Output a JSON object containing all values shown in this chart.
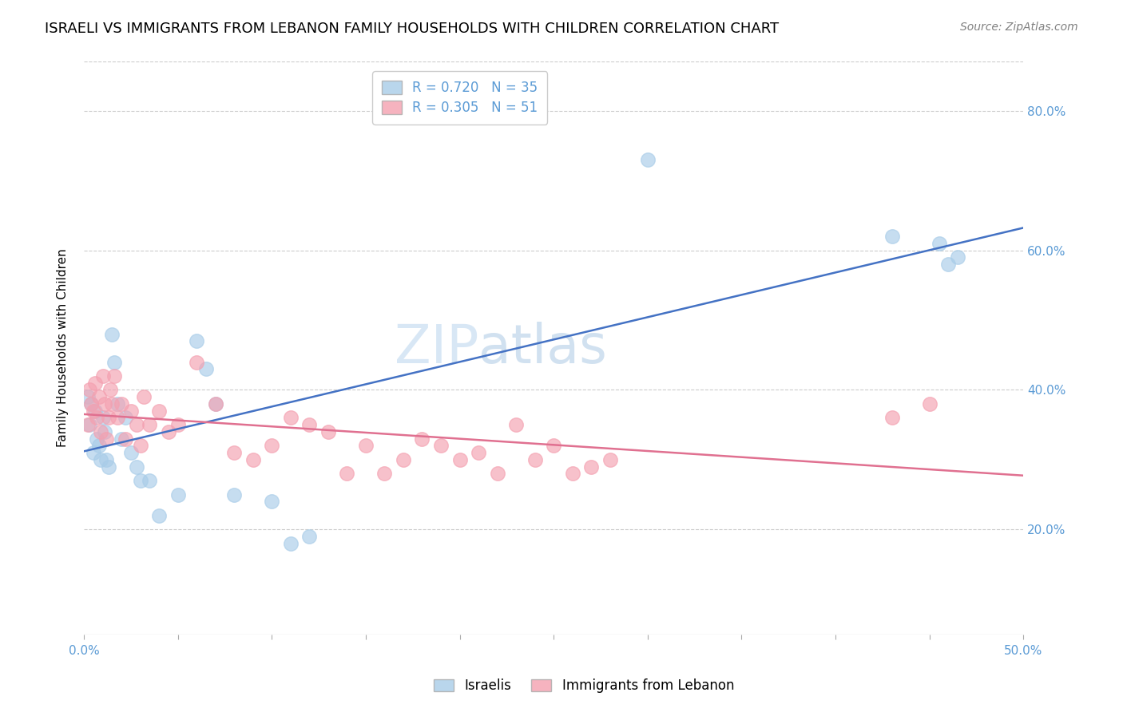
{
  "title": "ISRAELI VS IMMIGRANTS FROM LEBANON FAMILY HOUSEHOLDS WITH CHILDREN CORRELATION CHART",
  "source": "Source: ZipAtlas.com",
  "ylabel": "Family Households with Children",
  "xlim": [
    0.0,
    0.5
  ],
  "ylim": [
    0.05,
    0.87
  ],
  "yticks": [
    0.2,
    0.4,
    0.6,
    0.8
  ],
  "ytick_labels": [
    "20.0%",
    "40.0%",
    "60.0%",
    "80.0%"
  ],
  "xticks": [
    0.0,
    0.05,
    0.1,
    0.15,
    0.2,
    0.25,
    0.3,
    0.35,
    0.4,
    0.45,
    0.5
  ],
  "xtick_labels_show": [
    "0.0%",
    "",
    "",
    "",
    "",
    "",
    "",
    "",
    "",
    "",
    "50.0%"
  ],
  "grid_color": "#cccccc",
  "background_color": "#ffffff",
  "axis_color": "#5b9bd5",
  "israelis_R": 0.72,
  "israelis_N": 35,
  "lebanon_R": 0.305,
  "lebanon_N": 51,
  "israelis_color": "#a8cce8",
  "lebanon_color": "#f4a0b0",
  "israelis_line_color": "#4472c4",
  "lebanon_line_color": "#e07090",
  "israelis_x": [
    0.002,
    0.003,
    0.004,
    0.005,
    0.006,
    0.007,
    0.008,
    0.009,
    0.01,
    0.011,
    0.012,
    0.013,
    0.015,
    0.016,
    0.018,
    0.02,
    0.022,
    0.025,
    0.028,
    0.03,
    0.035,
    0.04,
    0.05,
    0.06,
    0.065,
    0.07,
    0.08,
    0.1,
    0.11,
    0.12,
    0.3,
    0.43,
    0.455,
    0.46,
    0.465
  ],
  "israelis_y": [
    0.39,
    0.35,
    0.38,
    0.31,
    0.37,
    0.33,
    0.32,
    0.3,
    0.36,
    0.34,
    0.3,
    0.29,
    0.48,
    0.44,
    0.38,
    0.33,
    0.36,
    0.31,
    0.29,
    0.27,
    0.27,
    0.22,
    0.25,
    0.47,
    0.43,
    0.38,
    0.25,
    0.24,
    0.18,
    0.19,
    0.73,
    0.62,
    0.61,
    0.58,
    0.59
  ],
  "lebanon_x": [
    0.002,
    0.003,
    0.004,
    0.005,
    0.006,
    0.007,
    0.008,
    0.009,
    0.01,
    0.011,
    0.012,
    0.013,
    0.014,
    0.015,
    0.016,
    0.018,
    0.02,
    0.022,
    0.025,
    0.028,
    0.03,
    0.032,
    0.035,
    0.04,
    0.045,
    0.05,
    0.06,
    0.07,
    0.08,
    0.09,
    0.1,
    0.11,
    0.12,
    0.13,
    0.14,
    0.15,
    0.16,
    0.17,
    0.18,
    0.19,
    0.2,
    0.21,
    0.22,
    0.23,
    0.24,
    0.25,
    0.26,
    0.27,
    0.28,
    0.43,
    0.45
  ],
  "lebanon_y": [
    0.35,
    0.4,
    0.38,
    0.37,
    0.41,
    0.36,
    0.39,
    0.34,
    0.42,
    0.38,
    0.33,
    0.36,
    0.4,
    0.38,
    0.42,
    0.36,
    0.38,
    0.33,
    0.37,
    0.35,
    0.32,
    0.39,
    0.35,
    0.37,
    0.34,
    0.35,
    0.44,
    0.38,
    0.31,
    0.3,
    0.32,
    0.36,
    0.35,
    0.34,
    0.28,
    0.32,
    0.28,
    0.3,
    0.33,
    0.32,
    0.3,
    0.31,
    0.28,
    0.35,
    0.3,
    0.32,
    0.28,
    0.29,
    0.3,
    0.36,
    0.38
  ],
  "title_fontsize": 13,
  "source_fontsize": 10,
  "label_fontsize": 11,
  "tick_fontsize": 11,
  "legend_fontsize": 12
}
